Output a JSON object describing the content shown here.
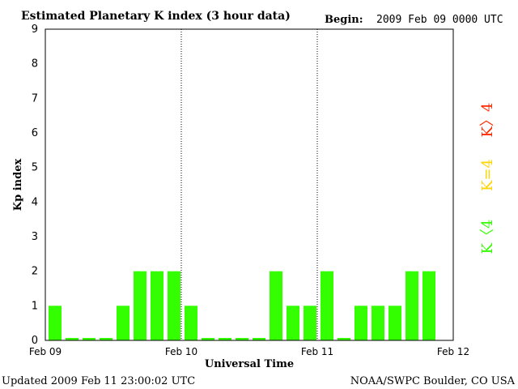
{
  "header": {
    "title": "Estimated Planetary K index (3 hour data)",
    "begin_label": "Begin:",
    "begin_value": "2009 Feb 09 0000 UTC"
  },
  "footer": {
    "updated": "Updated 2009 Feb 11 23:00:02 UTC",
    "source": "NOAA/SWPC Boulder, CO USA"
  },
  "legend": {
    "above": {
      "text": "K〉4",
      "color": "#ff2a00"
    },
    "equal": {
      "text": "K=4",
      "color": "#ffd400"
    },
    "below": {
      "text": "K〈4",
      "color": "#33ff00"
    }
  },
  "chart_data": {
    "type": "bar",
    "ylabel": "Kp index",
    "xlabel": "Universal Time",
    "ylim": [
      0,
      9
    ],
    "yticks": [
      "0",
      "1",
      "2",
      "3",
      "4",
      "5",
      "6",
      "7",
      "8",
      "9"
    ],
    "xticks": [
      "Feb 09",
      "Feb 10",
      "Feb 11",
      "Feb 12"
    ],
    "interval_hours": 3,
    "values": [
      1,
      0,
      0,
      0,
      1,
      2,
      2,
      2,
      1,
      0,
      0,
      0,
      0,
      2,
      1,
      1,
      2,
      0,
      1,
      1,
      1,
      2,
      2
    ],
    "bar_color": "#33ff00",
    "day_separators": "dotted"
  }
}
